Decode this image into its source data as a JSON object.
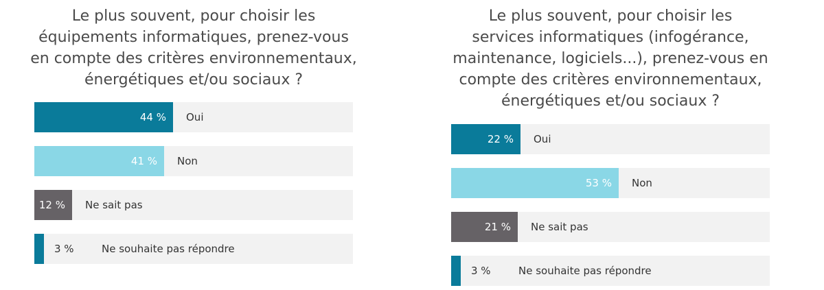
{
  "chart_data": [
    {
      "type": "bar",
      "orientation": "horizontal",
      "title_lines": [
        "Le plus souvent, pour choisir les",
        "équipements informatiques, prenez-vous",
        "en compte des critères environnementaux,",
        "énergétiques et/ou sociaux ?"
      ],
      "categories": [
        "Oui",
        "Non",
        "Ne sait pas",
        "Ne souhaite pas répondre"
      ],
      "values": [
        44,
        41,
        12,
        3
      ],
      "value_labels": [
        "44 %",
        "41 %",
        "12 %",
        "3 %"
      ],
      "colors": [
        "#0a7b9a",
        "#8ad7e6",
        "#666266",
        "#0a7b9a"
      ],
      "xlim": [
        0,
        100
      ],
      "grid": false,
      "legend": "none"
    },
    {
      "type": "bar",
      "orientation": "horizontal",
      "title_lines": [
        "Le plus souvent, pour choisir les",
        "services informatiques (infogérance,",
        "maintenance, logiciels...), prenez-vous en",
        "compte des critères environnementaux,",
        "énergétiques et/ou sociaux ?"
      ],
      "categories": [
        "Oui",
        "Non",
        "Ne sait pas",
        "Ne souhaite pas répondre"
      ],
      "values": [
        22,
        53,
        21,
        3
      ],
      "value_labels": [
        "22 %",
        "53 %",
        "21 %",
        "3 %"
      ],
      "colors": [
        "#0a7b9a",
        "#8ad7e6",
        "#666266",
        "#0a7b9a"
      ],
      "xlim": [
        0,
        100
      ],
      "grid": false,
      "legend": "none"
    }
  ]
}
